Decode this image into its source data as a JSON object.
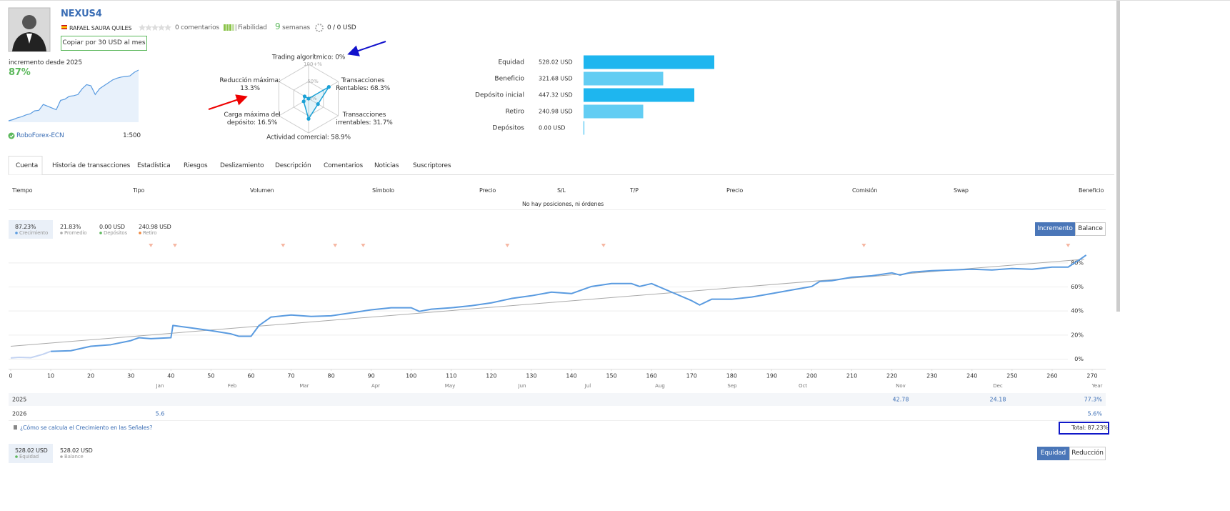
{
  "header": {
    "title": "NEXUS4",
    "author": "RAFAEL SAURA QUILES",
    "comments": "0 comentarios",
    "reliability": "Fiabilidad",
    "weeks": "9",
    "weeks_unit": "semanas",
    "subscribers": "0 / 0 USD",
    "copy_button": "Copiar por 30 USD al mes"
  },
  "summary": {
    "growth_label": "incremento desde 2025",
    "growth": "87%",
    "broker": "RoboForex-ECN",
    "leverage": "1:500"
  },
  "sparkline": {
    "type": "line",
    "color": "#5a9be0",
    "values": [
      0,
      2,
      5,
      7,
      10,
      12,
      17,
      18,
      28,
      25,
      22,
      19,
      35,
      37,
      42,
      43,
      45,
      55,
      62,
      60,
      45,
      55,
      60,
      65,
      70,
      73,
      75,
      76,
      77,
      83,
      87
    ]
  },
  "radar": {
    "type": "radar",
    "color": "#1ba1d6",
    "rlim": [
      0,
      100
    ],
    "rticks": [
      {
        "value": 0,
        "label": "0%"
      },
      {
        "value": 50,
        "label": "50%"
      },
      {
        "value": 100,
        "label": "100+%"
      }
    ],
    "axes": [
      {
        "name": "Trading algorítmico:",
        "value": 0,
        "value_label": "0%"
      },
      {
        "name": "Transacciones Rentables:",
        "value": 68.3,
        "value_label": "68.3%"
      },
      {
        "name": "Transacciones irrentables:",
        "value": 31.7,
        "value_label": "31.7%"
      },
      {
        "name": "Actividad comercial:",
        "value": 58.9,
        "value_label": "58.9%"
      },
      {
        "name": "Carga máxima del depósito:",
        "value": 16.5,
        "value_label": "16.5%"
      },
      {
        "name": "Reducción máxima:",
        "value": 13.3,
        "value_label": "13.3%"
      }
    ]
  },
  "balance_bars": {
    "type": "hbar",
    "categories": [
      "Equidad",
      "Beneficio",
      "Depósito inicial",
      "Retiro",
      "Depósitos"
    ],
    "values": [
      528.02,
      321.68,
      447.32,
      240.98,
      0
    ],
    "value_labels": [
      "528.02 USD",
      "321.68 USD",
      "447.32 USD",
      "240.98 USD",
      "0.00 USD"
    ],
    "colors": [
      "#1eb6ef",
      "#62cdf3",
      "#1eb6ef",
      "#62cdf3",
      "#1eb6ef"
    ]
  },
  "tabs": [
    "Cuenta",
    "Historia de transacciones",
    "Estadística",
    "Riesgos",
    "Deslizamiento",
    "Descripción",
    "Comentarios",
    "Noticias",
    "Suscriptores"
  ],
  "positions": {
    "columns": [
      "Tiempo",
      "Tipo",
      "Volumen",
      "Símbolo",
      "Precio",
      "S/L",
      "T/P",
      "Precio",
      "Comisión",
      "Swap",
      "Beneficio"
    ],
    "empty": "No hay posiciones, ni órdenes"
  },
  "growth_stats": [
    {
      "value": "87.23%",
      "label": "Crecimiento",
      "color": "#5a9be0"
    },
    {
      "value": "21.83%",
      "label": "Promedio",
      "color": "#aaaaaa"
    },
    {
      "value": "0.00 USD",
      "label": "Depósitos",
      "color": "#5cb85c"
    },
    {
      "value": "240.98 USD",
      "label": "Retiro",
      "color": "#f0863c"
    }
  ],
  "growth_buttons": [
    "Incremento",
    "Balance"
  ],
  "chart_data": {
    "type": "line",
    "series": [
      {
        "color": "#c3d3f2",
        "x": [
          0,
          2,
          5,
          8,
          10
        ],
        "values": [
          1,
          1.5,
          1.2,
          4,
          6.5
        ]
      },
      {
        "color": "#5a9be0",
        "x": [
          10,
          15,
          20,
          25,
          30,
          32,
          35,
          40,
          40.5,
          45,
          50,
          55,
          57,
          60,
          62,
          65,
          70,
          75,
          80,
          85,
          90,
          95,
          100,
          102,
          105,
          110,
          115,
          120,
          125,
          130,
          135,
          140,
          145,
          150,
          155,
          157,
          160,
          165,
          170,
          172,
          175,
          180,
          185,
          190,
          195,
          200,
          202,
          205,
          210,
          215,
          220,
          222,
          225,
          230,
          235,
          240,
          245,
          250,
          255,
          260,
          264,
          267,
          268.5
        ],
        "values": [
          6.5,
          7,
          10.7,
          12,
          15.4,
          17.8,
          17,
          17.8,
          28,
          26,
          23.7,
          21,
          19,
          19,
          28,
          35,
          36.7,
          35.5,
          36,
          38.5,
          41,
          42.7,
          42.7,
          39.7,
          41.5,
          42.7,
          44.4,
          46.8,
          50.4,
          52.7,
          55.7,
          54.5,
          60.4,
          62.8,
          62.8,
          60.4,
          62.8,
          55.7,
          48.6,
          45,
          49.8,
          49.8,
          51.6,
          54.5,
          57.5,
          60.4,
          64.6,
          65.2,
          68.1,
          69.3,
          71.7,
          69.9,
          72.3,
          73.5,
          74.1,
          74.7,
          74.1,
          75.3,
          74.7,
          76.5,
          76.5,
          83,
          86.5
        ]
      }
    ],
    "trend": {
      "color": "#aaaaaa",
      "x": [
        0,
        268
      ],
      "values": [
        10.7,
        83
      ]
    },
    "markers_x": [
      35,
      41,
      68,
      81,
      88,
      124,
      148,
      213,
      264
    ],
    "marker_color": "#f6b8a4",
    "xlim": [
      0,
      270
    ],
    "xticks": [
      0,
      10,
      20,
      30,
      40,
      50,
      60,
      70,
      80,
      90,
      100,
      110,
      120,
      130,
      140,
      150,
      160,
      170,
      180,
      190,
      200,
      210,
      220,
      230,
      240,
      250,
      260,
      270
    ],
    "ylim": [
      -8,
      90
    ],
    "yticks": [
      {
        "value": 0,
        "label": "0%"
      },
      {
        "value": 20,
        "label": "20%"
      },
      {
        "value": 40,
        "label": "40%"
      },
      {
        "value": 60,
        "label": "60%"
      },
      {
        "value": 80,
        "label": "80%"
      }
    ],
    "grid": true
  },
  "growth_table": {
    "months": [
      "Jan",
      "Feb",
      "Mar",
      "Apr",
      "May",
      "Jun",
      "Jul",
      "Aug",
      "Sep",
      "Oct",
      "Nov",
      "Dec",
      "Year"
    ],
    "rows": [
      {
        "year": "2025",
        "cells": [
          null,
          null,
          null,
          null,
          null,
          null,
          null,
          null,
          null,
          null,
          "42.78",
          "24.18",
          "77.3%"
        ]
      },
      {
        "year": "2026",
        "cells": [
          "5.6",
          null,
          null,
          null,
          null,
          null,
          null,
          null,
          null,
          null,
          null,
          null,
          "5.6%"
        ]
      }
    ]
  },
  "footer": {
    "link": "¿Cómo se calcula el Crecimiento en las Señales?",
    "total": "Total: 87.23%"
  },
  "equity_stats": [
    {
      "value": "528.02 USD",
      "label": "Equidad",
      "color": "#5cb85c"
    },
    {
      "value": "528.02 USD",
      "label": "Balance",
      "color": "#aaaaaa"
    }
  ],
  "equity_buttons": [
    "Equidad",
    "Reducción"
  ]
}
